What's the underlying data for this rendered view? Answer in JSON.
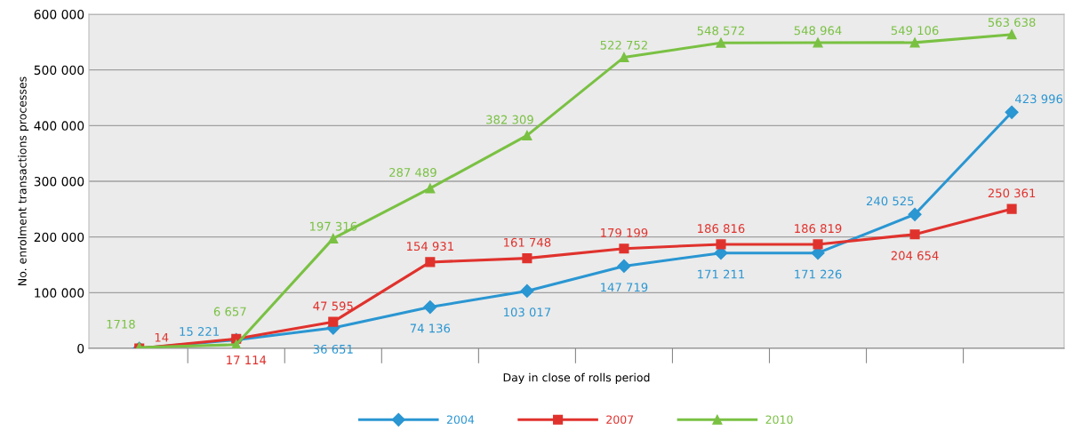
{
  "chart_data": {
    "type": "line",
    "xlabel": "Day in close of rolls period",
    "ylabel": "No. enrolment transactions processes",
    "categories": [
      null,
      null,
      null,
      null,
      null,
      null,
      null,
      null,
      null,
      null
    ],
    "ylim": [
      0,
      600000
    ],
    "yticks": [
      0,
      {
        "value": 100000,
        "label": "100 000"
      },
      {
        "value": 200000,
        "label": "200 000"
      },
      {
        "value": 300000,
        "label": "300 000"
      },
      {
        "value": 400000,
        "label": "400 000"
      },
      {
        "value": 500000,
        "label": "500 000"
      },
      {
        "value": 600000,
        "label": "600 000"
      }
    ],
    "grid": "y",
    "legend": "bottom",
    "tick_labels": "y",
    "series": [
      {
        "name": "2004",
        "color": "#2a96d2",
        "marker": "diamond",
        "values": [
          0,
          15221,
          36651,
          74136,
          103017,
          147719,
          171211,
          171226,
          240525,
          423996
        ],
        "value_labels": [
          null,
          "15 221",
          "36 651",
          "74 136",
          "103 017",
          "147 719",
          "171 211",
          "171 226",
          "240 525",
          "423 996"
        ]
      },
      {
        "name": "2007",
        "color": "#e0322d",
        "marker": "square",
        "values": [
          14,
          17114,
          47595,
          154931,
          161748,
          179199,
          186816,
          186819,
          204654,
          250361
        ],
        "value_labels": [
          "14",
          "17 114",
          "47 595",
          "154 931",
          "161 748",
          "179 199",
          "186 816",
          "186 819",
          "204 654",
          "250 361"
        ]
      },
      {
        "name": "2010",
        "color": "#7ac143",
        "marker": "triangle",
        "values": [
          1718,
          6657,
          197316,
          287489,
          382309,
          522752,
          548572,
          548964,
          549106,
          563638
        ],
        "value_labels": [
          "1718",
          "6 657",
          "197 316",
          "287 489",
          "382 309",
          "522 752",
          "548 572",
          "548 964",
          "549 106",
          "563 638"
        ]
      }
    ]
  }
}
